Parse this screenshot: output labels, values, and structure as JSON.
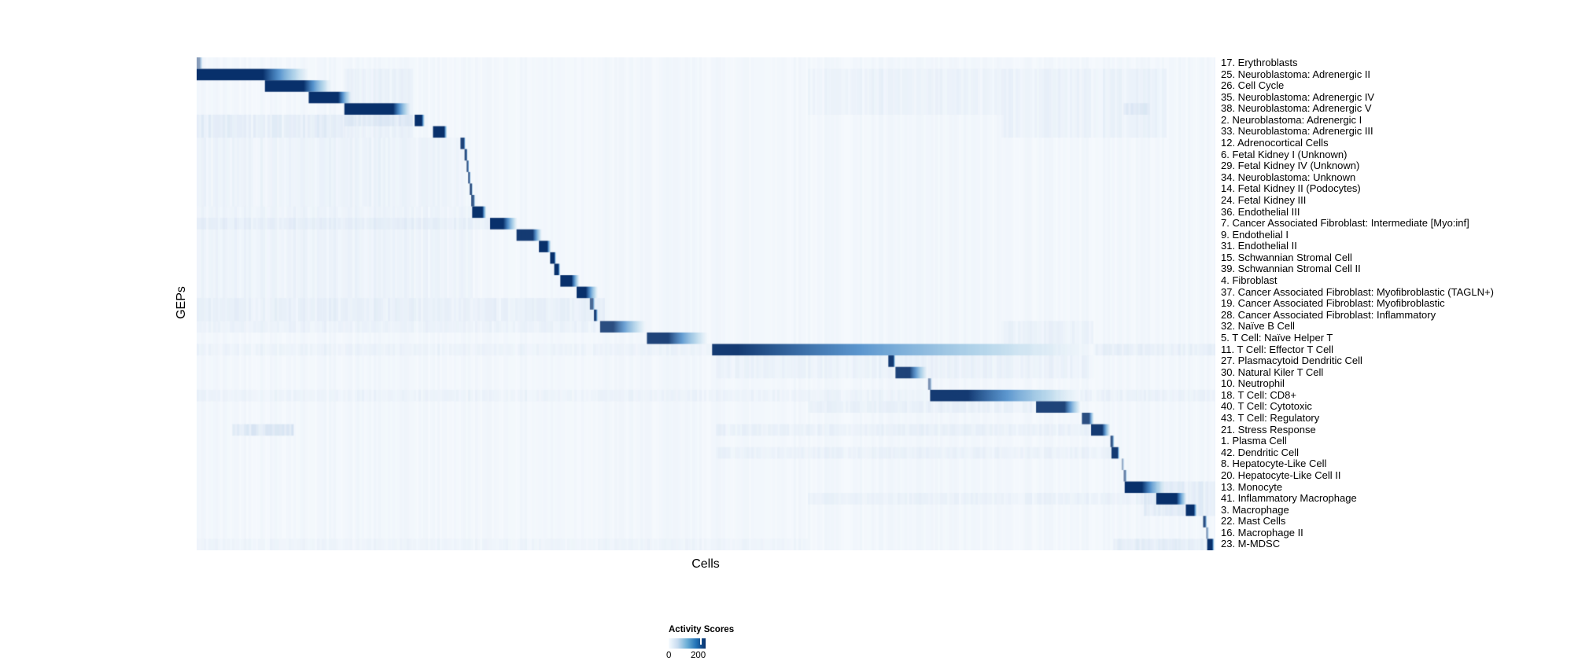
{
  "figure": {
    "y_axis_label": "GEPs",
    "x_axis_label": "Cells",
    "legend": {
      "title": "Activity Scores",
      "min_label": "0",
      "max_label": "200"
    }
  },
  "chart_data": {
    "type": "heatmap",
    "title": "",
    "xlabel": "Cells",
    "ylabel": "GEPs",
    "legend_title": "Activity Scores",
    "colorbar": {
      "min": 0,
      "max": 200,
      "ticks": [
        0,
        200
      ],
      "colormap": "Blues",
      "stops": [
        "#f7fbff",
        "#c6dbef",
        "#6baed6",
        "#2171b5",
        "#08306b"
      ],
      "background": "#f5f9fd",
      "high": "#08306b"
    },
    "layout": {
      "grid": false,
      "legend_position": "bottom-center",
      "rows_are_geps": true,
      "columns_are_cells": true
    },
    "noise": 0.05,
    "rows": [
      {
        "label": "17. Erythroblasts",
        "block": [
          0.0,
          0.003,
          0.006
        ],
        "peak": 0.45
      },
      {
        "label": "25. Neuroblastoma: Adrenergic II",
        "block": [
          0.0,
          0.065,
          0.11
        ],
        "peak": 1.0
      },
      {
        "label": "26. Cell Cycle",
        "block": [
          0.067,
          0.105,
          0.132
        ],
        "peak": 1.0
      },
      {
        "label": "35. Neuroblastoma: Adrenergic IV",
        "block": [
          0.11,
          0.139,
          0.152
        ],
        "peak": 1.0
      },
      {
        "label": "38. Neuroblastoma: Adrenergic V",
        "block": [
          0.145,
          0.193,
          0.21
        ],
        "peak": 1.0
      },
      {
        "label": "2. Neuroblastoma: Adrenergic I",
        "block": [
          0.214,
          0.221,
          0.224
        ],
        "peak": 1.0
      },
      {
        "label": "33. Neuroblastoma: Adrenergic III",
        "block": [
          0.232,
          0.243,
          0.246
        ],
        "peak": 1.0
      },
      {
        "label": "12. Adrenocortical Cells",
        "block": [
          0.259,
          0.2625,
          0.264
        ],
        "peak": 0.9
      },
      {
        "label": "6. Fetal Kidney I (Unknown)",
        "block": [
          0.263,
          0.265,
          0.266
        ],
        "peak": 0.85
      },
      {
        "label": "29. Fetal Kidney IV (Unknown)",
        "block": [
          0.265,
          0.2665,
          0.2675
        ],
        "peak": 0.8
      },
      {
        "label": "34. Neuroblastoma: Unknown",
        "block": [
          0.2665,
          0.268,
          0.269
        ],
        "peak": 0.75
      },
      {
        "label": "14. Fetal Kidney II (Podocytes)",
        "block": [
          0.268,
          0.27,
          0.271
        ],
        "peak": 0.8
      },
      {
        "label": "24. Fetal Kidney III",
        "block": [
          0.2695,
          0.272,
          0.2735
        ],
        "peak": 0.8
      },
      {
        "label": "36. Endothelial III",
        "block": [
          0.2705,
          0.2805,
          0.2845
        ],
        "peak": 1.0
      },
      {
        "label": "7. Cancer Associated Fibroblast: Intermediate [Myo:inf]",
        "block": [
          0.288,
          0.301,
          0.315
        ],
        "peak": 1.0
      },
      {
        "label": "9. Endothelial I",
        "block": [
          0.314,
          0.33,
          0.339
        ],
        "peak": 0.95
      },
      {
        "label": "31. Endothelial II",
        "block": [
          0.336,
          0.344,
          0.348
        ],
        "peak": 1.0
      },
      {
        "label": "15. Schwannian Stromal Cell",
        "block": [
          0.347,
          0.351,
          0.353
        ],
        "peak": 1.0
      },
      {
        "label": "39. Schwannian Stromal Cell II",
        "block": [
          0.351,
          0.355,
          0.357
        ],
        "peak": 1.0
      },
      {
        "label": "4. Fibroblast",
        "block": [
          0.357,
          0.368,
          0.376
        ],
        "peak": 1.0
      },
      {
        "label": "37. Cancer Associated Fibroblast: Myofibroblastic (TAGLN+)",
        "block": [
          0.373,
          0.382,
          0.394
        ],
        "peak": 1.0
      },
      {
        "label": "19. Cancer Associated Fibroblast: Myofibroblastic",
        "block": [
          0.386,
          0.389,
          0.391
        ],
        "peak": 0.7
      },
      {
        "label": "28. Cancer Associated Fibroblast: Inflammatory",
        "block": [
          0.39,
          0.392,
          0.394
        ],
        "peak": 0.9
      },
      {
        "label": "32. Naïve B Cell",
        "block": [
          0.396,
          0.409,
          0.441
        ],
        "peak": 0.85
      },
      {
        "label": "5. T Cell: Naïve Helper T",
        "block": [
          0.442,
          0.463,
          0.502
        ],
        "peak": 0.9
      },
      {
        "label": "11. T Cell: Effector T Cell",
        "block": [
          0.506,
          0.531,
          0.88
        ],
        "peak": 0.95
      },
      {
        "label": "27. Plasmacytoid Dendritic Cell",
        "block": [
          0.679,
          0.684,
          0.686
        ],
        "peak": 0.95
      },
      {
        "label": "30. Natural Kiler T Cell",
        "block": [
          0.686,
          0.7,
          0.717
        ],
        "peak": 0.9
      },
      {
        "label": "10. Neutrophil",
        "block": [
          0.718,
          0.72,
          0.722
        ],
        "peak": 0.5
      },
      {
        "label": "18. T Cell: CD8+",
        "block": [
          0.72,
          0.757,
          0.867
        ],
        "peak": 0.95
      },
      {
        "label": "40. T Cell: Cytotoxic",
        "block": [
          0.824,
          0.852,
          0.868
        ],
        "peak": 0.9
      },
      {
        "label": "43. T Cell: Regulatory",
        "block": [
          0.869,
          0.876,
          0.881
        ],
        "peak": 0.85
      },
      {
        "label": "21. Stress Response",
        "block": [
          0.878,
          0.889,
          0.897
        ],
        "peak": 0.95
      },
      {
        "label": "1. Plasma Cell",
        "block": [
          0.897,
          0.899,
          0.901
        ],
        "peak": 0.8
      },
      {
        "label": "42. Dendritic Cell",
        "block": [
          0.898,
          0.904,
          0.906
        ],
        "peak": 0.95
      },
      {
        "label": "8. Hepatocyte-Like Cell",
        "block": [
          0.908,
          0.909,
          0.911
        ],
        "peak": 0.4
      },
      {
        "label": "20. Hepatocyte-Like Cell II",
        "block": [
          0.91,
          0.912,
          0.913
        ],
        "peak": 0.6
      },
      {
        "label": "13. Monocyte",
        "block": [
          0.911,
          0.928,
          0.951
        ],
        "peak": 1.0
      },
      {
        "label": "41. Inflammatory Macrophage",
        "block": [
          0.942,
          0.962,
          0.972
        ],
        "peak": 1.0
      },
      {
        "label": "3. Macrophage",
        "block": [
          0.971,
          0.979,
          0.982
        ],
        "peak": 1.0
      },
      {
        "label": "22. Mast Cells",
        "block": [
          0.988,
          0.99,
          0.992
        ],
        "peak": 0.85
      },
      {
        "label": "16. Macrophage II",
        "block": [
          0.991,
          0.992,
          0.994
        ],
        "peak": 0.5
      },
      {
        "label": "23. M-MDSC",
        "block": [
          0.992,
          0.997,
          0.999
        ],
        "peak": 1.0
      }
    ],
    "bands": [
      {
        "r0": 6,
        "r1": 7,
        "x0": 0.0,
        "x1": 0.145,
        "a": 0.1
      },
      {
        "r0": 6,
        "r1": 6,
        "x0": 0.145,
        "x1": 0.21,
        "a": 0.08
      },
      {
        "r0": 2,
        "r1": 7,
        "x0": 0.145,
        "x1": 0.21,
        "a": 0.05
      },
      {
        "r0": 8,
        "r1": 13,
        "x0": 0.0,
        "x1": 0.26,
        "a": 0.04
      },
      {
        "r0": 14,
        "r1": 21,
        "x0": 0.0,
        "x1": 0.27,
        "a": 0.04
      },
      {
        "r0": 15,
        "r1": 15,
        "x0": 0.0,
        "x1": 0.287,
        "a": 0.05
      },
      {
        "r0": 22,
        "r1": 23,
        "x0": 0.0,
        "x1": 0.4,
        "a": 0.07
      },
      {
        "r0": 24,
        "r1": 24,
        "x0": 0.0,
        "x1": 0.395,
        "a": 0.05
      },
      {
        "r0": 24,
        "r1": 25,
        "x0": 0.79,
        "x1": 0.88,
        "a": 0.06
      },
      {
        "r0": 26,
        "r1": 26,
        "x0": 0.0,
        "x1": 0.505,
        "a": 0.04
      },
      {
        "r0": 26,
        "r1": 26,
        "x0": 0.88,
        "x1": 1.0,
        "a": 0.07
      },
      {
        "r0": 27,
        "r1": 28,
        "x0": 0.51,
        "x1": 0.88,
        "a": 0.05
      },
      {
        "r0": 30,
        "r1": 30,
        "x0": 0.0,
        "x1": 0.718,
        "a": 0.04
      },
      {
        "r0": 30,
        "r1": 30,
        "x0": 0.867,
        "x1": 1.0,
        "a": 0.05
      },
      {
        "r0": 31,
        "r1": 31,
        "x0": 0.6,
        "x1": 0.823,
        "a": 0.06
      },
      {
        "r0": 33,
        "r1": 33,
        "x0": 0.035,
        "x1": 0.095,
        "a": 0.16
      },
      {
        "r0": 33,
        "r1": 33,
        "x0": 0.51,
        "x1": 0.877,
        "a": 0.06
      },
      {
        "r0": 35,
        "r1": 35,
        "x0": 0.51,
        "x1": 0.897,
        "a": 0.05
      },
      {
        "r0": 2,
        "r1": 7,
        "x0": 0.79,
        "x1": 0.95,
        "a": 0.05
      },
      {
        "r0": 2,
        "r1": 5,
        "x0": 0.6,
        "x1": 0.79,
        "a": 0.04
      },
      {
        "r0": 5,
        "r1": 5,
        "x0": 0.91,
        "x1": 0.935,
        "a": 0.1
      },
      {
        "r0": 38,
        "r1": 40,
        "x0": 0.93,
        "x1": 1.0,
        "a": 0.1
      },
      {
        "r0": 39,
        "r1": 39,
        "x0": 0.6,
        "x1": 0.94,
        "a": 0.05
      },
      {
        "r0": 43,
        "r1": 43,
        "x0": 0.9,
        "x1": 0.992,
        "a": 0.09
      },
      {
        "r0": 43,
        "r1": 43,
        "x0": 0.0,
        "x1": 0.6,
        "a": 0.03
      }
    ]
  }
}
